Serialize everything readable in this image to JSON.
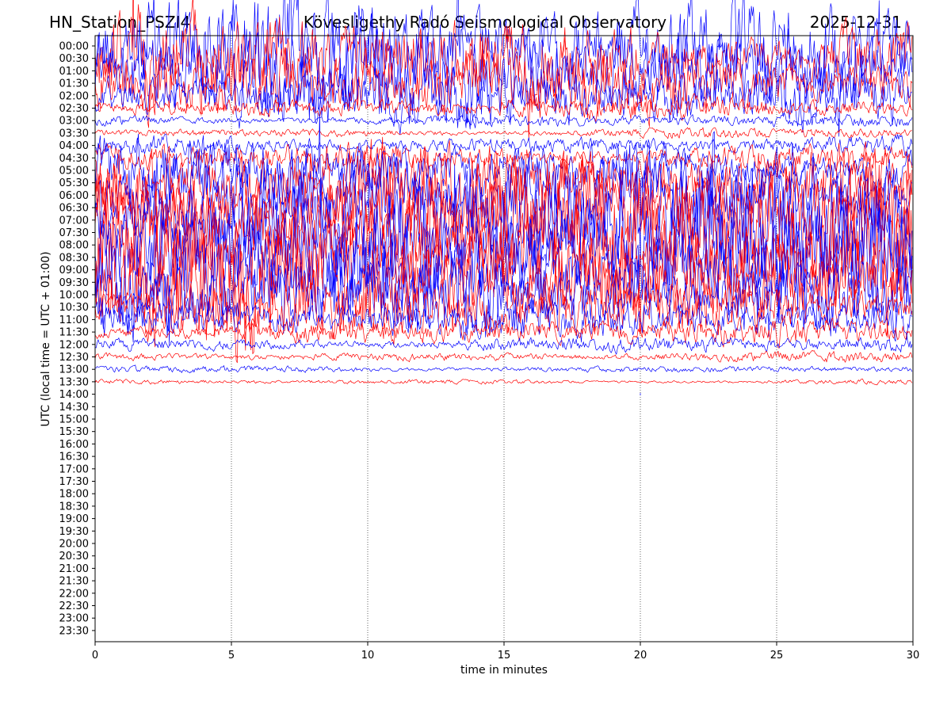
{
  "header": {
    "station": "HN_Station_PSZI4",
    "observatory": "Kövesligethy Radó Seismological Observatory",
    "date": "2025-12-31"
  },
  "chart_data": {
    "type": "line",
    "title": "Kövesligethy Radó Seismological Observatory",
    "xlabel": "time in minutes",
    "ylabel": "UTC (local time = UTC + 01:00)",
    "xlim": [
      0,
      30
    ],
    "x_ticks": [
      0,
      5,
      10,
      15,
      20,
      25,
      30
    ],
    "x_tick_labels": [
      "0",
      "5",
      "10",
      "15",
      "20",
      "25",
      "30"
    ],
    "y_tick_labels": [
      "00:00",
      "00:30",
      "01:00",
      "01:30",
      "02:00",
      "02:30",
      "03:00",
      "03:30",
      "04:00",
      "04:30",
      "05:00",
      "05:30",
      "06:00",
      "06:30",
      "07:00",
      "07:30",
      "08:00",
      "08:30",
      "09:00",
      "09:30",
      "10:00",
      "10:30",
      "11:00",
      "11:30",
      "12:00",
      "12:30",
      "13:00",
      "13:30",
      "14:00",
      "14:30",
      "15:00",
      "15:30",
      "16:00",
      "16:30",
      "17:00",
      "17:30",
      "18:00",
      "18:30",
      "19:00",
      "19:30",
      "20:00",
      "20:30",
      "21:00",
      "21:30",
      "22:00",
      "22:30",
      "23:00",
      "23:30"
    ],
    "grid": {
      "vertical_dotted_at_minutes": [
        5,
        10,
        15,
        20,
        25
      ]
    },
    "line_colors": [
      "#0000ff",
      "#ff0000"
    ],
    "recorded_until": "14:00",
    "noise_level_by_row": [
      2.4,
      1.8,
      2.0,
      1.4,
      1.2,
      0.4,
      0.25,
      0.2,
      0.4,
      0.6,
      1.2,
      1.6,
      1.8,
      2.0,
      2.6,
      3.0,
      3.0,
      2.8,
      2.6,
      2.4,
      1.6,
      1.2,
      0.8,
      0.5,
      0.3,
      0.2,
      0.15,
      0.1,
      0.0
    ]
  }
}
